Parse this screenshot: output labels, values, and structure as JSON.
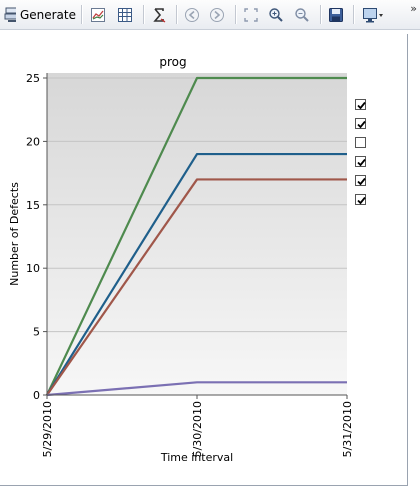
{
  "toolbar": {
    "generate_label": "Generate",
    "buttons": [
      {
        "icon": "generate-report-icon"
      },
      {
        "icon": "line-chart-icon"
      },
      {
        "icon": "table-grid-icon"
      },
      {
        "icon": "sigma-icon"
      },
      {
        "icon": "arrow-left-icon"
      },
      {
        "icon": "arrow-right-icon"
      },
      {
        "icon": "fit-to-window-icon"
      },
      {
        "icon": "zoom-in-icon"
      },
      {
        "icon": "zoom-out-icon"
      },
      {
        "icon": "save-icon"
      },
      {
        "icon": "monitor-settings-icon"
      }
    ],
    "overflow_label": "»"
  },
  "legend": {
    "checkboxes": [
      {
        "checked": true
      },
      {
        "checked": true
      },
      {
        "checked": false
      },
      {
        "checked": true
      },
      {
        "checked": true
      },
      {
        "checked": true
      }
    ]
  },
  "chart_data": {
    "type": "line",
    "title": "prog",
    "xlabel": "Time interval",
    "ylabel": "Number of Defects",
    "x": [
      "5/29/2010",
      "5/30/2010",
      "5/31/2010"
    ],
    "ylim": [
      0,
      25
    ],
    "yticks": [
      0,
      5,
      10,
      15,
      20,
      25
    ],
    "grid": true,
    "legend_position": "right",
    "series": [
      {
        "color": "#4e8a4e",
        "values": [
          0,
          25,
          25
        ]
      },
      {
        "color": "#1f5f8b",
        "values": [
          0,
          19,
          19
        ]
      },
      {
        "color": "#a0574a",
        "values": [
          0,
          17,
          17
        ]
      },
      {
        "color": "#7b70b3",
        "values": [
          0,
          1,
          1
        ]
      }
    ]
  }
}
